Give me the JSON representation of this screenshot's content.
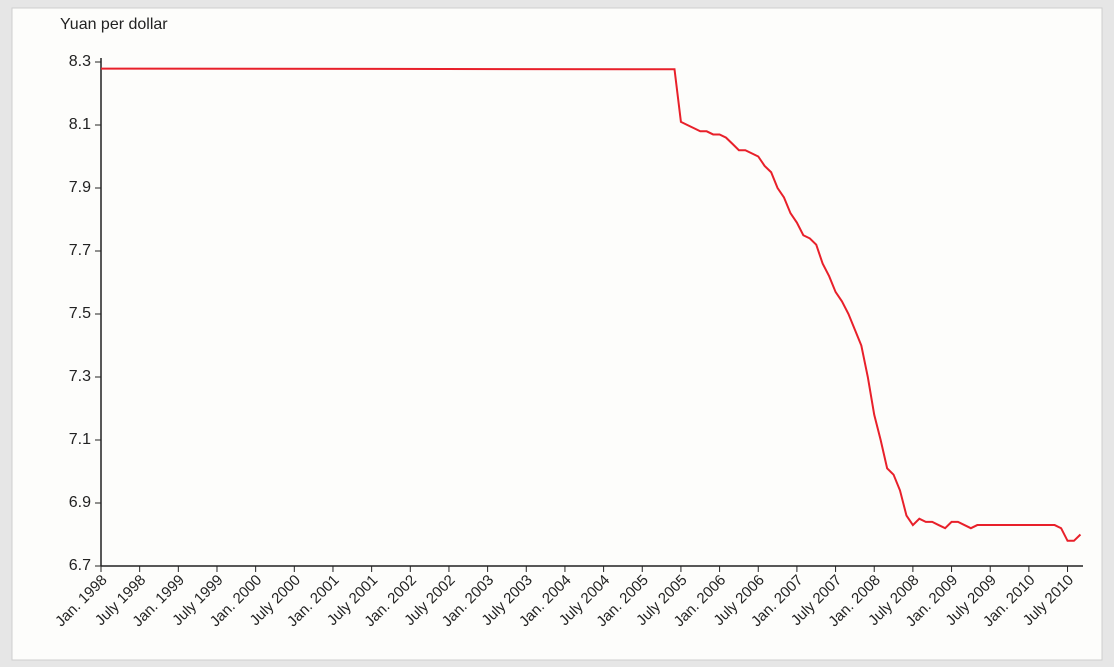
{
  "chart_data": {
    "type": "line",
    "ylabel": "Yuan per dollar",
    "x": [
      1998,
      2005.417,
      2005.5,
      2005.583,
      2005.667,
      2005.75,
      2005.833,
      2005.917,
      2006,
      2006.083,
      2006.167,
      2006.25,
      2006.333,
      2006.417,
      2006.5,
      2006.583,
      2006.667,
      2006.75,
      2006.833,
      2006.917,
      2007,
      2007.083,
      2007.167,
      2007.25,
      2007.333,
      2007.417,
      2007.5,
      2007.583,
      2007.667,
      2007.75,
      2007.833,
      2007.917,
      2008,
      2008.083,
      2008.167,
      2008.25,
      2008.333,
      2008.417,
      2008.5,
      2008.583,
      2008.667,
      2008.75,
      2008.833,
      2008.917,
      2009,
      2009.083,
      2009.167,
      2009.25,
      2009.333,
      2009.417,
      2009.5,
      2009.583,
      2009.667,
      2009.75,
      2009.833,
      2009.917,
      2010,
      2010.083,
      2010.167,
      2010.25,
      2010.333,
      2010.417,
      2010.5,
      2010.583,
      2010.667
    ],
    "series": [
      {
        "name": "Yuan per dollar",
        "color": "#e8202a",
        "values": [
          8.279,
          8.277,
          8.11,
          8.1,
          8.09,
          8.08,
          8.08,
          8.07,
          8.07,
          8.06,
          8.04,
          8.02,
          8.02,
          8.01,
          8.0,
          7.97,
          7.95,
          7.9,
          7.87,
          7.82,
          7.79,
          7.75,
          7.74,
          7.72,
          7.66,
          7.62,
          7.57,
          7.54,
          7.5,
          7.45,
          7.4,
          7.3,
          7.18,
          7.1,
          7.01,
          6.99,
          6.94,
          6.86,
          6.83,
          6.85,
          6.84,
          6.84,
          6.83,
          6.82,
          6.84,
          6.84,
          6.83,
          6.82,
          6.83,
          6.83,
          6.83,
          6.83,
          6.83,
          6.83,
          6.83,
          6.83,
          6.83,
          6.83,
          6.83,
          6.83,
          6.83,
          6.82,
          6.78,
          6.78,
          6.8
        ]
      }
    ],
    "xlim": [
      1998,
      2010.7
    ],
    "ylim": [
      6.7,
      8.3
    ],
    "yticks": [
      {
        "value": 6.7,
        "label": "6.7"
      },
      {
        "value": 6.9,
        "label": "6.9"
      },
      {
        "value": 7.1,
        "label": "7.1"
      },
      {
        "value": 7.3,
        "label": "7.3"
      },
      {
        "value": 7.5,
        "label": "7.5"
      },
      {
        "value": 7.7,
        "label": "7.7"
      },
      {
        "value": 7.9,
        "label": "7.9"
      },
      {
        "value": 8.1,
        "label": "8.1"
      },
      {
        "value": 8.3,
        "label": "8.3"
      }
    ],
    "xticks": [
      {
        "value": 1998,
        "label": "Jan. 1998"
      },
      {
        "value": 1998.5,
        "label": "July 1998"
      },
      {
        "value": 1999,
        "label": "Jan. 1999"
      },
      {
        "value": 1999.5,
        "label": "July 1999"
      },
      {
        "value": 2000,
        "label": "Jan. 2000"
      },
      {
        "value": 2000.5,
        "label": "July 2000"
      },
      {
        "value": 2001,
        "label": "Jan. 2001"
      },
      {
        "value": 2001.5,
        "label": "July 2001"
      },
      {
        "value": 2002,
        "label": "Jan. 2002"
      },
      {
        "value": 2002.5,
        "label": "July 2002"
      },
      {
        "value": 2003,
        "label": "Jan. 2003"
      },
      {
        "value": 2003.5,
        "label": "July 2003"
      },
      {
        "value": 2004,
        "label": "Jan. 2004"
      },
      {
        "value": 2004.5,
        "label": "July 2004"
      },
      {
        "value": 2005,
        "label": "Jan. 2005"
      },
      {
        "value": 2005.5,
        "label": "July 2005"
      },
      {
        "value": 2006,
        "label": "Jan. 2006"
      },
      {
        "value": 2006.5,
        "label": "July 2006"
      },
      {
        "value": 2007,
        "label": "Jan. 2007"
      },
      {
        "value": 2007.5,
        "label": "July 2007"
      },
      {
        "value": 2008,
        "label": "Jan. 2008"
      },
      {
        "value": 2008.5,
        "label": "July 2008"
      },
      {
        "value": 2009,
        "label": "Jan. 2009"
      },
      {
        "value": 2009.5,
        "label": "July 2009"
      },
      {
        "value": 2010,
        "label": "Jan. 2010"
      },
      {
        "value": 2010.5,
        "label": "July 2010"
      }
    ],
    "grid": false
  }
}
